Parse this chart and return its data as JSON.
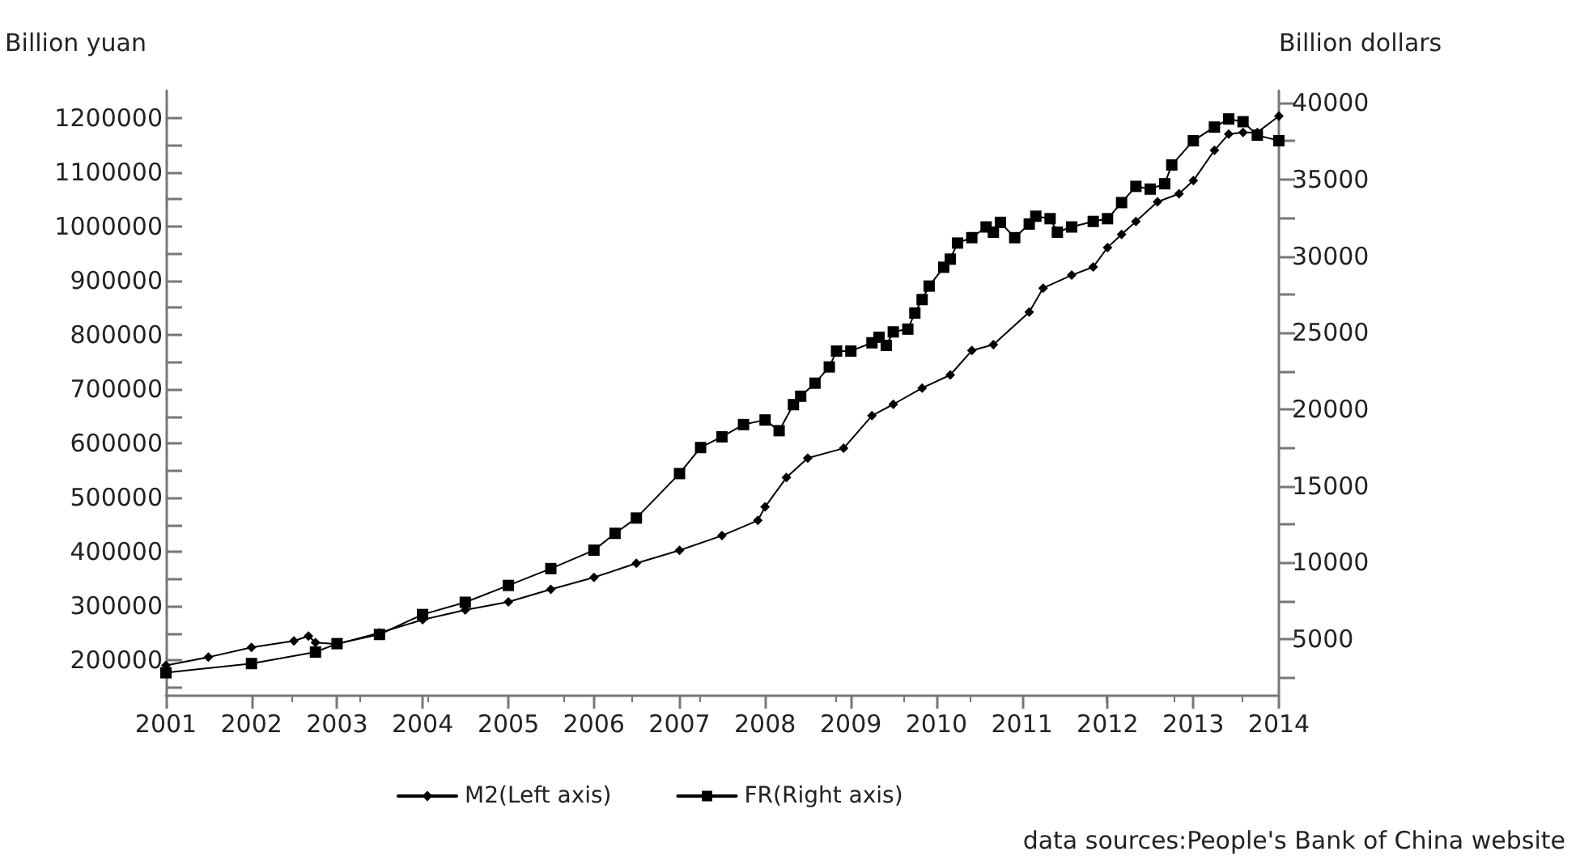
{
  "chart_data": {
    "type": "line",
    "ylabel": "Billion yuan",
    "y2label": "Billion dollars",
    "legend": "bottom",
    "line_style": "solid",
    "annotations": [
      "data sources:People's Bank of China website"
    ],
    "xlim": [
      "2001-01",
      "2014-01"
    ],
    "xticks": [
      "2001",
      "2002",
      "2003",
      "2004",
      "2005",
      "2006",
      "2007",
      "2008",
      "2009",
      "2010",
      "2011",
      "2012",
      "2013",
      "2014"
    ],
    "ylim": [
      135000,
      1250000
    ],
    "yticks": [
      {
        "value": 150000,
        "label": null
      },
      200000,
      {
        "value": 250000,
        "label": null
      },
      300000,
      {
        "value": 350000,
        "label": null
      },
      400000,
      {
        "value": 450000,
        "label": null
      },
      500000,
      {
        "value": 550000,
        "label": null
      },
      600000,
      {
        "value": 650000,
        "label": null
      },
      700000,
      {
        "value": 750000,
        "label": null
      },
      800000,
      {
        "value": 850000,
        "label": null
      },
      900000,
      {
        "value": 950000,
        "label": null
      },
      1000000,
      {
        "value": 1050000,
        "label": null
      },
      1100000,
      {
        "value": 1150000,
        "label": null
      },
      1200000
    ],
    "y2lim": [
      1300,
      40800
    ],
    "y2ticks": [
      {
        "value": 2500,
        "label": null
      },
      5000,
      {
        "value": 7500,
        "label": null
      },
      10000,
      {
        "value": 12500,
        "label": null
      },
      15000,
      {
        "value": 17500,
        "label": null
      },
      20000,
      {
        "value": 22500,
        "label": null
      },
      25000,
      {
        "value": 27500,
        "label": null
      },
      30000,
      {
        "value": 32500,
        "label": null
      },
      35000,
      {
        "value": 37500,
        "label": null
      },
      40000
    ],
    "series": [
      {
        "name": "M2(Left axis)",
        "color": "#000000",
        "marker": "diamond",
        "x": [
          "2001-01",
          "2001-07",
          "2002-01",
          "2002-07",
          "2002-09",
          "2002-10",
          "2003-01",
          "2003-07",
          "2004-01",
          "2004-07",
          "2005-01",
          "2005-07",
          "2006-01",
          "2006-07",
          "2007-01",
          "2007-07",
          "2007-12",
          "2008-01",
          "2008-04",
          "2008-07",
          "2008-12",
          "2009-04",
          "2009-07",
          "2009-11",
          "2010-03",
          "2010-06",
          "2010-09",
          "2011-02",
          "2011-04",
          "2011-08",
          "2011-11",
          "2012-01",
          "2012-03",
          "2012-05",
          "2012-08",
          "2012-11",
          "2013-01",
          "2013-04",
          "2013-06",
          "2013-08",
          "2013-10",
          "2014-01"
        ],
        "values": [
          191000,
          206000,
          224000,
          236000,
          245000,
          233000,
          230000,
          251000,
          275000,
          293000,
          308000,
          331000,
          353000,
          379000,
          403000,
          430000,
          458000,
          483000,
          537000,
          573000,
          591000,
          651000,
          672000,
          702000,
          726000,
          771000,
          782000,
          842000,
          886000,
          910000,
          925000,
          961000,
          985000,
          1009000,
          1045000,
          1060000,
          1084000,
          1140000,
          1170000,
          1173000,
          1173000,
          1203000
        ]
      },
      {
        "name": "FR(Right axis)",
        "color": "#000000",
        "marker": "square",
        "axis": "y2",
        "x": [
          "2001-01",
          "2002-01",
          "2002-10",
          "2003-01",
          "2003-07",
          "2004-01",
          "2004-07",
          "2005-01",
          "2005-07",
          "2006-01",
          "2006-04",
          "2006-07",
          "2007-01",
          "2007-04",
          "2007-07",
          "2007-10",
          "2008-01",
          "2008-03",
          "2008-05",
          "2008-06",
          "2008-08",
          "2008-10",
          "2008-11",
          "2009-01",
          "2009-04",
          "2009-05",
          "2009-06",
          "2009-07",
          "2009-09",
          "2009-10",
          "2009-11",
          "2009-12",
          "2010-02",
          "2010-03",
          "2010-04",
          "2010-06",
          "2010-08",
          "2010-09",
          "2010-10",
          "2010-12",
          "2011-02",
          "2011-03",
          "2011-05",
          "2011-06",
          "2011-08",
          "2011-11",
          "2012-01",
          "2012-03",
          "2012-05",
          "2012-07",
          "2012-09",
          "2012-10",
          "2013-01",
          "2013-04",
          "2013-06",
          "2013-08",
          "2013-10",
          "2014-01"
        ],
        "values": [
          2800,
          3400,
          4150,
          4700,
          5300,
          6600,
          7400,
          8500,
          9600,
          10800,
          11900,
          12900,
          15800,
          17500,
          18200,
          19000,
          19300,
          18600,
          20300,
          20850,
          21700,
          22760,
          23800,
          23800,
          24340,
          24700,
          24170,
          25050,
          25230,
          26280,
          27160,
          28040,
          29270,
          29800,
          30850,
          31200,
          31900,
          31560,
          32200,
          31200,
          32090,
          32600,
          32440,
          31560,
          31900,
          32260,
          32440,
          33490,
          34550,
          34370,
          34720,
          35950,
          37530,
          38420,
          38950,
          38770,
          37890,
          37530
        ]
      }
    ]
  }
}
